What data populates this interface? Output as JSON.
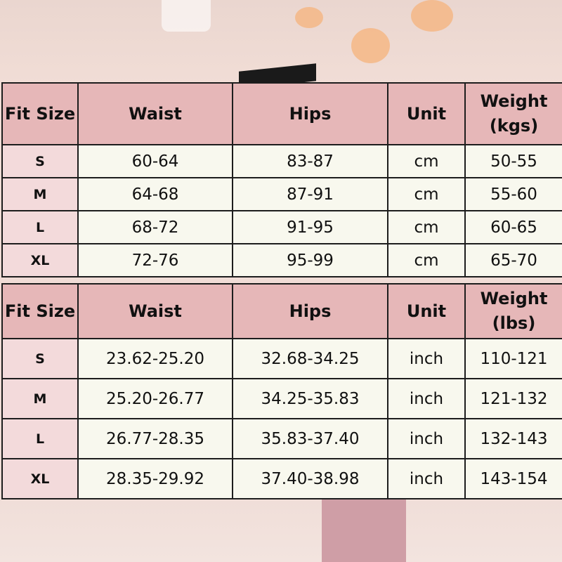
{
  "metric_table": {
    "headers": [
      "Fit Size",
      "Waist",
      "Hips",
      "Unit",
      "Weight (kgs)"
    ],
    "rows": [
      [
        "S",
        "60-64",
        "83-87",
        "cm",
        "50-55"
      ],
      [
        "M",
        "64-68",
        "87-91",
        "cm",
        "55-60"
      ],
      [
        "L",
        "68-72",
        "91-95",
        "cm",
        "60-65"
      ],
      [
        "XL",
        "72-76",
        "95-99",
        "cm",
        "65-70"
      ]
    ]
  },
  "imperial_table": {
    "headers": [
      "Fit Size",
      "Waist",
      "Hips",
      "Unit",
      "Weight (lbs)"
    ],
    "rows": [
      [
        "S",
        "23.62-25.20",
        "32.68-34.25",
        "inch",
        "110-121"
      ],
      [
        "M",
        "25.20-26.77",
        "34.25-35.83",
        "inch",
        "121-132"
      ],
      [
        "L",
        "26.77-28.35",
        "35.83-37.40",
        "inch",
        "132-143"
      ],
      [
        "XL",
        "28.35-29.92",
        "37.40-38.98",
        "inch",
        "143-154"
      ]
    ]
  },
  "colors": {
    "header": "#e6b7b8",
    "size_column": "#f3dadb",
    "cell": "#f8f8ee",
    "border": "#1d1d1d"
  }
}
